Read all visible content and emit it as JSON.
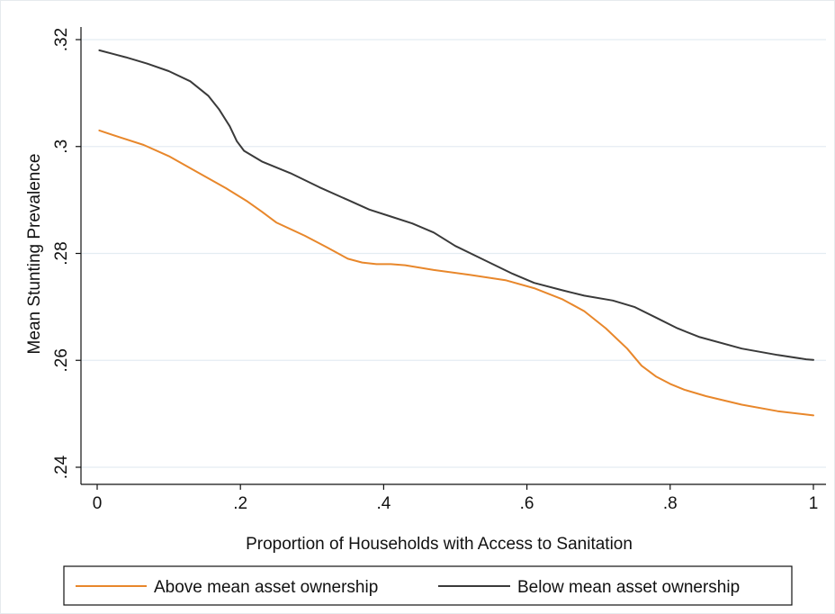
{
  "chart_data": {
    "type": "line",
    "title": "",
    "xlabel": "Proportion of Households with Access to Sanitation",
    "ylabel": "Mean Stunting Prevalence",
    "xlim": [
      0,
      1
    ],
    "ylim": [
      0.24,
      0.32
    ],
    "x_ticks": [
      0,
      0.2,
      0.4,
      0.6,
      0.8,
      1
    ],
    "x_tick_labels": [
      "0",
      ".2",
      ".4",
      ".6",
      ".8",
      "1"
    ],
    "y_ticks": [
      0.24,
      0.26,
      0.28,
      0.3,
      0.32
    ],
    "y_tick_labels": [
      ".24",
      ".26",
      ".28",
      ".3",
      ".32"
    ],
    "grid": true,
    "legend_position": "bottom",
    "series": [
      {
        "name": "Above mean asset ownership",
        "color": "#e8872b",
        "x": [
          0.003,
          0.03,
          0.065,
          0.1,
          0.14,
          0.18,
          0.21,
          0.23,
          0.25,
          0.29,
          0.32,
          0.35,
          0.37,
          0.39,
          0.41,
          0.43,
          0.47,
          0.52,
          0.57,
          0.61,
          0.65,
          0.68,
          0.71,
          0.74,
          0.76,
          0.78,
          0.8,
          0.82,
          0.85,
          0.9,
          0.95,
          1.0
        ],
        "y": [
          0.303,
          0.3018,
          0.3003,
          0.2982,
          0.2952,
          0.2922,
          0.2897,
          0.2878,
          0.2858,
          0.2833,
          0.2812,
          0.279,
          0.2783,
          0.278,
          0.278,
          0.2778,
          0.2769,
          0.276,
          0.275,
          0.2735,
          0.2714,
          0.2692,
          0.266,
          0.2622,
          0.259,
          0.257,
          0.2556,
          0.2545,
          0.2533,
          0.2517,
          0.2505,
          0.2497
        ]
      },
      {
        "name": "Below mean asset ownership",
        "color": "#3a3a3a",
        "x": [
          0.003,
          0.04,
          0.07,
          0.1,
          0.13,
          0.155,
          0.17,
          0.185,
          0.195,
          0.205,
          0.23,
          0.27,
          0.31,
          0.35,
          0.38,
          0.41,
          0.44,
          0.47,
          0.5,
          0.54,
          0.58,
          0.61,
          0.65,
          0.68,
          0.72,
          0.75,
          0.78,
          0.81,
          0.84,
          0.9,
          0.95,
          0.99,
          1.0
        ],
        "y": [
          0.318,
          0.3167,
          0.3155,
          0.3141,
          0.3122,
          0.3095,
          0.307,
          0.3038,
          0.301,
          0.2992,
          0.2972,
          0.295,
          0.2924,
          0.29,
          0.2882,
          0.2869,
          0.2856,
          0.2839,
          0.2814,
          0.2788,
          0.2762,
          0.2745,
          0.2731,
          0.2721,
          0.2712,
          0.27,
          0.268,
          0.266,
          0.2644,
          0.2622,
          0.261,
          0.2602,
          0.2601
        ]
      }
    ]
  }
}
